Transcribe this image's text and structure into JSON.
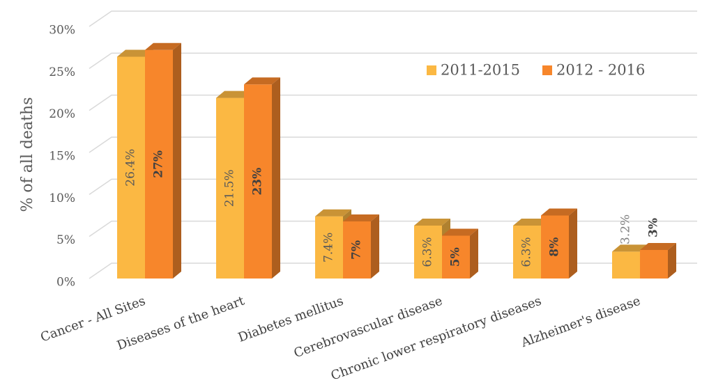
{
  "chart_data": {
    "type": "bar3d",
    "ylabel": "% of all deaths",
    "categories": [
      "Cancer - All Sites",
      "Diseases of the heart",
      "Diabetes mellitus",
      "Cerebrovascular disease",
      "Chronic lower respiratory diseases",
      "Alzheimer's disease"
    ],
    "series": [
      {
        "name": "2011-2015",
        "color": "#fbb843",
        "values": [
          26.4,
          21.5,
          7.4,
          6.3,
          6.3,
          3.2
        ],
        "value_labels": [
          "26.4%",
          "21.5%",
          "7.4%",
          "6.3%",
          "6.3%",
          "3.2%"
        ]
      },
      {
        "name": "2012 - 2016",
        "color": "#f7862b",
        "values": [
          27.2,
          23.1,
          6.8,
          5.1,
          7.5,
          3.4
        ],
        "value_labels": [
          "27%",
          "23%",
          "7%",
          "5%",
          "8%",
          "3%"
        ]
      }
    ],
    "ylim": [
      0,
      30
    ],
    "yticks": [
      {
        "value": 0,
        "label": "0%"
      },
      {
        "value": 5,
        "label": "5%"
      },
      {
        "value": 10,
        "label": "10%"
      },
      {
        "value": 15,
        "label": "15%"
      },
      {
        "value": 20,
        "label": "20%"
      },
      {
        "value": 25,
        "label": "25%"
      },
      {
        "value": 30,
        "label": "30%"
      }
    ],
    "grid": true,
    "legend": "top-right"
  }
}
